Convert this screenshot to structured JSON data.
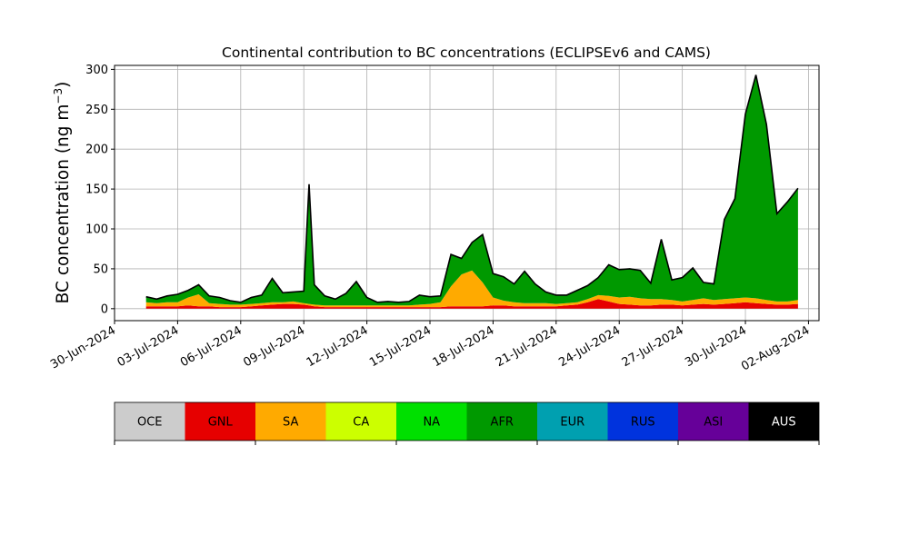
{
  "chart_data": {
    "type": "area",
    "stacked": true,
    "title": "Continental contribution to BC concentrations (ECLIPSEv6 and CAMS)",
    "ylabel": "BC concentration (ng m",
    "ylabel_superscript": "−3",
    "ylabel_suffix": ")",
    "xlim": [
      "2024-06-30T00:00",
      "2024-08-02T12:00"
    ],
    "ylim": [
      -15,
      305
    ],
    "yticks": [
      0,
      50,
      100,
      150,
      200,
      250,
      300
    ],
    "xticks": [
      {
        "date": "2024-06-30",
        "label": "30-Jun-2024"
      },
      {
        "date": "2024-07-03",
        "label": "03-Jul-2024"
      },
      {
        "date": "2024-07-06",
        "label": "06-Jul-2024"
      },
      {
        "date": "2024-07-09",
        "label": "09-Jul-2024"
      },
      {
        "date": "2024-07-12",
        "label": "12-Jul-2024"
      },
      {
        "date": "2024-07-15",
        "label": "15-Jul-2024"
      },
      {
        "date": "2024-07-18",
        "label": "18-Jul-2024"
      },
      {
        "date": "2024-07-21",
        "label": "21-Jul-2024"
      },
      {
        "date": "2024-07-24",
        "label": "24-Jul-2024"
      },
      {
        "date": "2024-07-27",
        "label": "27-Jul-2024"
      },
      {
        "date": "2024-07-30",
        "label": "30-Jul-2024"
      },
      {
        "date": "2024-08-02",
        "label": "02-Aug-2024"
      }
    ],
    "grid": true,
    "x": [
      "2024-07-01T12:00",
      "2024-07-02T00:00",
      "2024-07-02T12:00",
      "2024-07-03T00:00",
      "2024-07-03T12:00",
      "2024-07-04T00:00",
      "2024-07-04T12:00",
      "2024-07-05T00:00",
      "2024-07-05T12:00",
      "2024-07-06T00:00",
      "2024-07-06T12:00",
      "2024-07-07T00:00",
      "2024-07-07T12:00",
      "2024-07-08T00:00",
      "2024-07-08T12:00",
      "2024-07-09T00:00",
      "2024-07-09T06:00",
      "2024-07-09T12:00",
      "2024-07-10T00:00",
      "2024-07-10T12:00",
      "2024-07-11T00:00",
      "2024-07-11T12:00",
      "2024-07-12T00:00",
      "2024-07-12T12:00",
      "2024-07-13T00:00",
      "2024-07-13T12:00",
      "2024-07-14T00:00",
      "2024-07-14T12:00",
      "2024-07-15T00:00",
      "2024-07-15T12:00",
      "2024-07-16T00:00",
      "2024-07-16T12:00",
      "2024-07-17T00:00",
      "2024-07-17T12:00",
      "2024-07-18T00:00",
      "2024-07-18T12:00",
      "2024-07-19T00:00",
      "2024-07-19T12:00",
      "2024-07-20T00:00",
      "2024-07-20T12:00",
      "2024-07-21T00:00",
      "2024-07-21T12:00",
      "2024-07-22T00:00",
      "2024-07-22T12:00",
      "2024-07-23T00:00",
      "2024-07-23T12:00",
      "2024-07-24T00:00",
      "2024-07-24T12:00",
      "2024-07-25T00:00",
      "2024-07-25T12:00",
      "2024-07-26T00:00",
      "2024-07-26T12:00",
      "2024-07-27T00:00",
      "2024-07-27T12:00",
      "2024-07-28T00:00",
      "2024-07-28T12:00",
      "2024-07-29T00:00",
      "2024-07-29T12:00",
      "2024-07-30T00:00",
      "2024-07-30T12:00",
      "2024-07-31T00:00",
      "2024-07-31T12:00",
      "2024-08-01T00:00",
      "2024-08-01T12:00"
    ],
    "series": [
      {
        "name": "OCE",
        "color": "#cccccc",
        "values": [
          0,
          0,
          0,
          0,
          0,
          0,
          0,
          0,
          0,
          0,
          0,
          0,
          0,
          0,
          0,
          0,
          0,
          0,
          0,
          0,
          0,
          0,
          0,
          0,
          0,
          0,
          0,
          0,
          0,
          0,
          0,
          0,
          0,
          0,
          0,
          0,
          0,
          0,
          0,
          0,
          0,
          0,
          0,
          0,
          0,
          0,
          0,
          0,
          0,
          0,
          0,
          0,
          0,
          0,
          0,
          0,
          0,
          0,
          0,
          0,
          0,
          0,
          0,
          0
        ]
      },
      {
        "name": "GNL",
        "color": "#e60000",
        "values": [
          3,
          3,
          3,
          3,
          4,
          3,
          3,
          2,
          2,
          2,
          3,
          4,
          5,
          6,
          6,
          5,
          4,
          3,
          2,
          2,
          2,
          2,
          2,
          2,
          2,
          2,
          2,
          2,
          2,
          2,
          3,
          3,
          3,
          3,
          4,
          4,
          3,
          3,
          3,
          3,
          3,
          4,
          5,
          8,
          12,
          9,
          6,
          5,
          4,
          4,
          5,
          5,
          4,
          5,
          6,
          5,
          6,
          7,
          8,
          7,
          6,
          5,
          5,
          6
        ]
      },
      {
        "name": "SA",
        "color": "#ffaa00",
        "values": [
          5,
          4,
          5,
          5,
          10,
          15,
          4,
          4,
          3,
          3,
          3,
          3,
          3,
          2,
          3,
          2,
          2,
          2,
          2,
          2,
          2,
          2,
          2,
          2,
          2,
          2,
          2,
          3,
          4,
          6,
          25,
          40,
          45,
          30,
          10,
          6,
          5,
          4,
          4,
          4,
          3,
          3,
          3,
          4,
          5,
          7,
          8,
          10,
          9,
          8,
          7,
          6,
          5,
          6,
          7,
          6,
          6,
          6,
          6,
          6,
          5,
          4,
          4,
          5
        ]
      },
      {
        "name": "CA",
        "color": "#ccff00",
        "values": [
          0,
          0,
          0,
          0,
          0,
          0,
          0,
          0,
          0,
          0,
          0,
          0,
          0,
          0,
          0,
          0,
          0,
          0,
          0,
          0,
          0,
          0,
          0,
          0,
          0,
          0,
          0,
          0,
          0,
          0,
          0,
          0,
          0,
          0,
          0,
          0,
          0,
          0,
          0,
          0,
          0,
          0,
          0,
          0,
          0,
          0,
          0,
          0,
          0,
          0,
          0,
          0,
          0,
          0,
          0,
          0,
          0,
          0,
          0,
          0,
          0,
          0,
          0,
          0
        ]
      },
      {
        "name": "NA",
        "color": "#00e000",
        "values": [
          0,
          0,
          0,
          0,
          0,
          0,
          0,
          0,
          0,
          0,
          0,
          0,
          0,
          0,
          0,
          0,
          0,
          0,
          0,
          0,
          0,
          0,
          0,
          0,
          0,
          0,
          0,
          0,
          0,
          0,
          0,
          0,
          0,
          0,
          0,
          0,
          0,
          0,
          0,
          0,
          0,
          0,
          0,
          0,
          0,
          0,
          0,
          0,
          0,
          0,
          0,
          0,
          0,
          0,
          0,
          0,
          0,
          0,
          0,
          0,
          0,
          0,
          0,
          0
        ]
      },
      {
        "name": "AFR",
        "color": "#009900",
        "values": [
          7,
          5,
          8,
          10,
          9,
          12,
          9,
          8,
          5,
          3,
          8,
          10,
          30,
          12,
          12,
          15,
          150,
          25,
          12,
          8,
          15,
          30,
          10,
          4,
          5,
          4,
          5,
          12,
          9,
          8,
          40,
          20,
          35,
          60,
          30,
          30,
          23,
          40,
          24,
          14,
          11,
          10,
          15,
          17,
          22,
          39,
          35,
          35,
          35,
          20,
          75,
          25,
          30,
          40,
          20,
          20,
          100,
          125,
          230,
          280,
          220,
          110,
          125,
          140
        ]
      },
      {
        "name": "EUR",
        "color": "#00a0b0",
        "values": [
          0,
          0,
          0,
          0,
          0,
          0,
          0,
          0,
          0,
          0,
          0,
          0,
          0,
          0,
          0,
          0,
          0,
          0,
          0,
          0,
          0,
          0,
          0,
          0,
          0,
          0,
          0,
          0,
          0,
          0,
          0,
          0,
          0,
          0,
          0,
          0,
          0,
          0,
          0,
          0,
          0,
          0,
          0,
          0,
          0,
          0,
          0,
          0,
          0,
          0,
          0,
          0,
          0,
          0,
          0,
          0,
          0,
          0,
          0,
          0,
          0,
          0,
          0,
          0
        ]
      },
      {
        "name": "RUS",
        "color": "#0033dd",
        "values": [
          0,
          0,
          0,
          0,
          0,
          0,
          0,
          0,
          0,
          0,
          0,
          0,
          0,
          0,
          0,
          0,
          0,
          0,
          0,
          0,
          0,
          0,
          0,
          0,
          0,
          0,
          0,
          0,
          0,
          0,
          0,
          0,
          0,
          0,
          0,
          0,
          0,
          0,
          0,
          0,
          0,
          0,
          0,
          0,
          0,
          0,
          0,
          0,
          0,
          0,
          0,
          0,
          0,
          0,
          0,
          0,
          0,
          0,
          0,
          0,
          0,
          0,
          0,
          0
        ]
      },
      {
        "name": "ASI",
        "color": "#660099",
        "values": [
          0,
          0,
          0,
          0,
          0,
          0,
          0,
          0,
          0,
          0,
          0,
          0,
          0,
          0,
          0,
          0,
          0,
          0,
          0,
          0,
          0,
          0,
          0,
          0,
          0,
          0,
          0,
          0,
          0,
          0,
          0,
          0,
          0,
          0,
          0,
          0,
          0,
          0,
          0,
          0,
          0,
          0,
          0,
          0,
          0,
          0,
          0,
          0,
          0,
          0,
          0,
          0,
          0,
          0,
          0,
          0,
          0,
          0,
          0,
          0,
          0,
          0,
          0,
          0
        ]
      },
      {
        "name": "AUS",
        "color": "#000000",
        "values": [
          0,
          0,
          0,
          0,
          0,
          0,
          0,
          0,
          0,
          0,
          0,
          0,
          0,
          0,
          0,
          0,
          0,
          0,
          0,
          0,
          0,
          0,
          0,
          0,
          0,
          0,
          0,
          0,
          0,
          0,
          0,
          0,
          0,
          0,
          0,
          0,
          0,
          0,
          0,
          0,
          0,
          0,
          0,
          0,
          0,
          0,
          0,
          0,
          0,
          0,
          0,
          0,
          0,
          0,
          0,
          0,
          0,
          0,
          0,
          0,
          0,
          0,
          0,
          0
        ]
      }
    ],
    "legend": {
      "placement": "bottom",
      "entries": [
        {
          "name": "OCE",
          "color": "#cccccc",
          "text_color": "#000000"
        },
        {
          "name": "GNL",
          "color": "#e60000",
          "text_color": "#000000"
        },
        {
          "name": "SA",
          "color": "#ffaa00",
          "text_color": "#000000"
        },
        {
          "name": "CA",
          "color": "#ccff00",
          "text_color": "#000000"
        },
        {
          "name": "NA",
          "color": "#00e000",
          "text_color": "#000000"
        },
        {
          "name": "AFR",
          "color": "#009900",
          "text_color": "#000000"
        },
        {
          "name": "EUR",
          "color": "#00a0b0",
          "text_color": "#000000"
        },
        {
          "name": "RUS",
          "color": "#0033dd",
          "text_color": "#000000"
        },
        {
          "name": "ASI",
          "color": "#660099",
          "text_color": "#000000"
        },
        {
          "name": "AUS",
          "color": "#000000",
          "text_color": "#ffffff"
        }
      ]
    }
  }
}
